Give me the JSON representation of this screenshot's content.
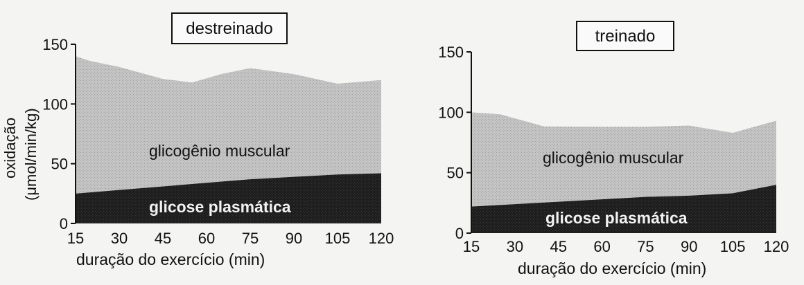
{
  "chart_data": [
    {
      "type": "area",
      "title": "destreinado",
      "xlabel": "duração do exercício (min)",
      "ylabel": "oxidação",
      "ylabel_unit": "(μmol/min/kg)",
      "x": [
        15,
        30,
        45,
        60,
        75,
        90,
        105,
        120
      ],
      "x_ticks": [
        "15",
        "30",
        "45",
        "60",
        "75",
        "90",
        "105",
        "120"
      ],
      "y_ticks": [
        "0",
        "50",
        "100",
        "150"
      ],
      "ylim": [
        0,
        150
      ],
      "stacked": true,
      "series": [
        {
          "name": "glicose plasmática",
          "color": "#1e1e1e",
          "x": [
            15,
            30,
            45,
            60,
            75,
            90,
            105,
            120
          ],
          "values": [
            25,
            28,
            31,
            34,
            37,
            39,
            41,
            42
          ]
        },
        {
          "name": "glicogênio muscular",
          "color": "#bdbdbd",
          "x": [
            15,
            20,
            30,
            45,
            55,
            65,
            75,
            90,
            105,
            120
          ],
          "values": [
            115,
            110,
            103,
            90,
            85,
            90,
            93,
            86,
            76,
            78
          ]
        }
      ]
    },
    {
      "type": "area",
      "title": "treinado",
      "xlabel": "duração do exercício (min)",
      "x": [
        15,
        30,
        45,
        60,
        75,
        90,
        105,
        120
      ],
      "x_ticks": [
        "15",
        "30",
        "45",
        "60",
        "75",
        "90",
        "105",
        "120"
      ],
      "y_ticks": [
        "0",
        "50",
        "100",
        "150"
      ],
      "ylim": [
        0,
        150
      ],
      "stacked": true,
      "series": [
        {
          "name": "glicose plasmática",
          "color": "#1e1e1e",
          "x": [
            15,
            30,
            45,
            60,
            75,
            90,
            105,
            120
          ],
          "values": [
            22,
            24,
            26,
            28,
            30,
            31,
            33,
            40
          ]
        },
        {
          "name": "glicogênio muscular",
          "color": "#bdbdbd",
          "x": [
            15,
            25,
            30,
            40,
            60,
            75,
            90,
            105,
            120
          ],
          "values": [
            78,
            75,
            71,
            63,
            60,
            58,
            58,
            50,
            53
          ]
        }
      ]
    }
  ]
}
